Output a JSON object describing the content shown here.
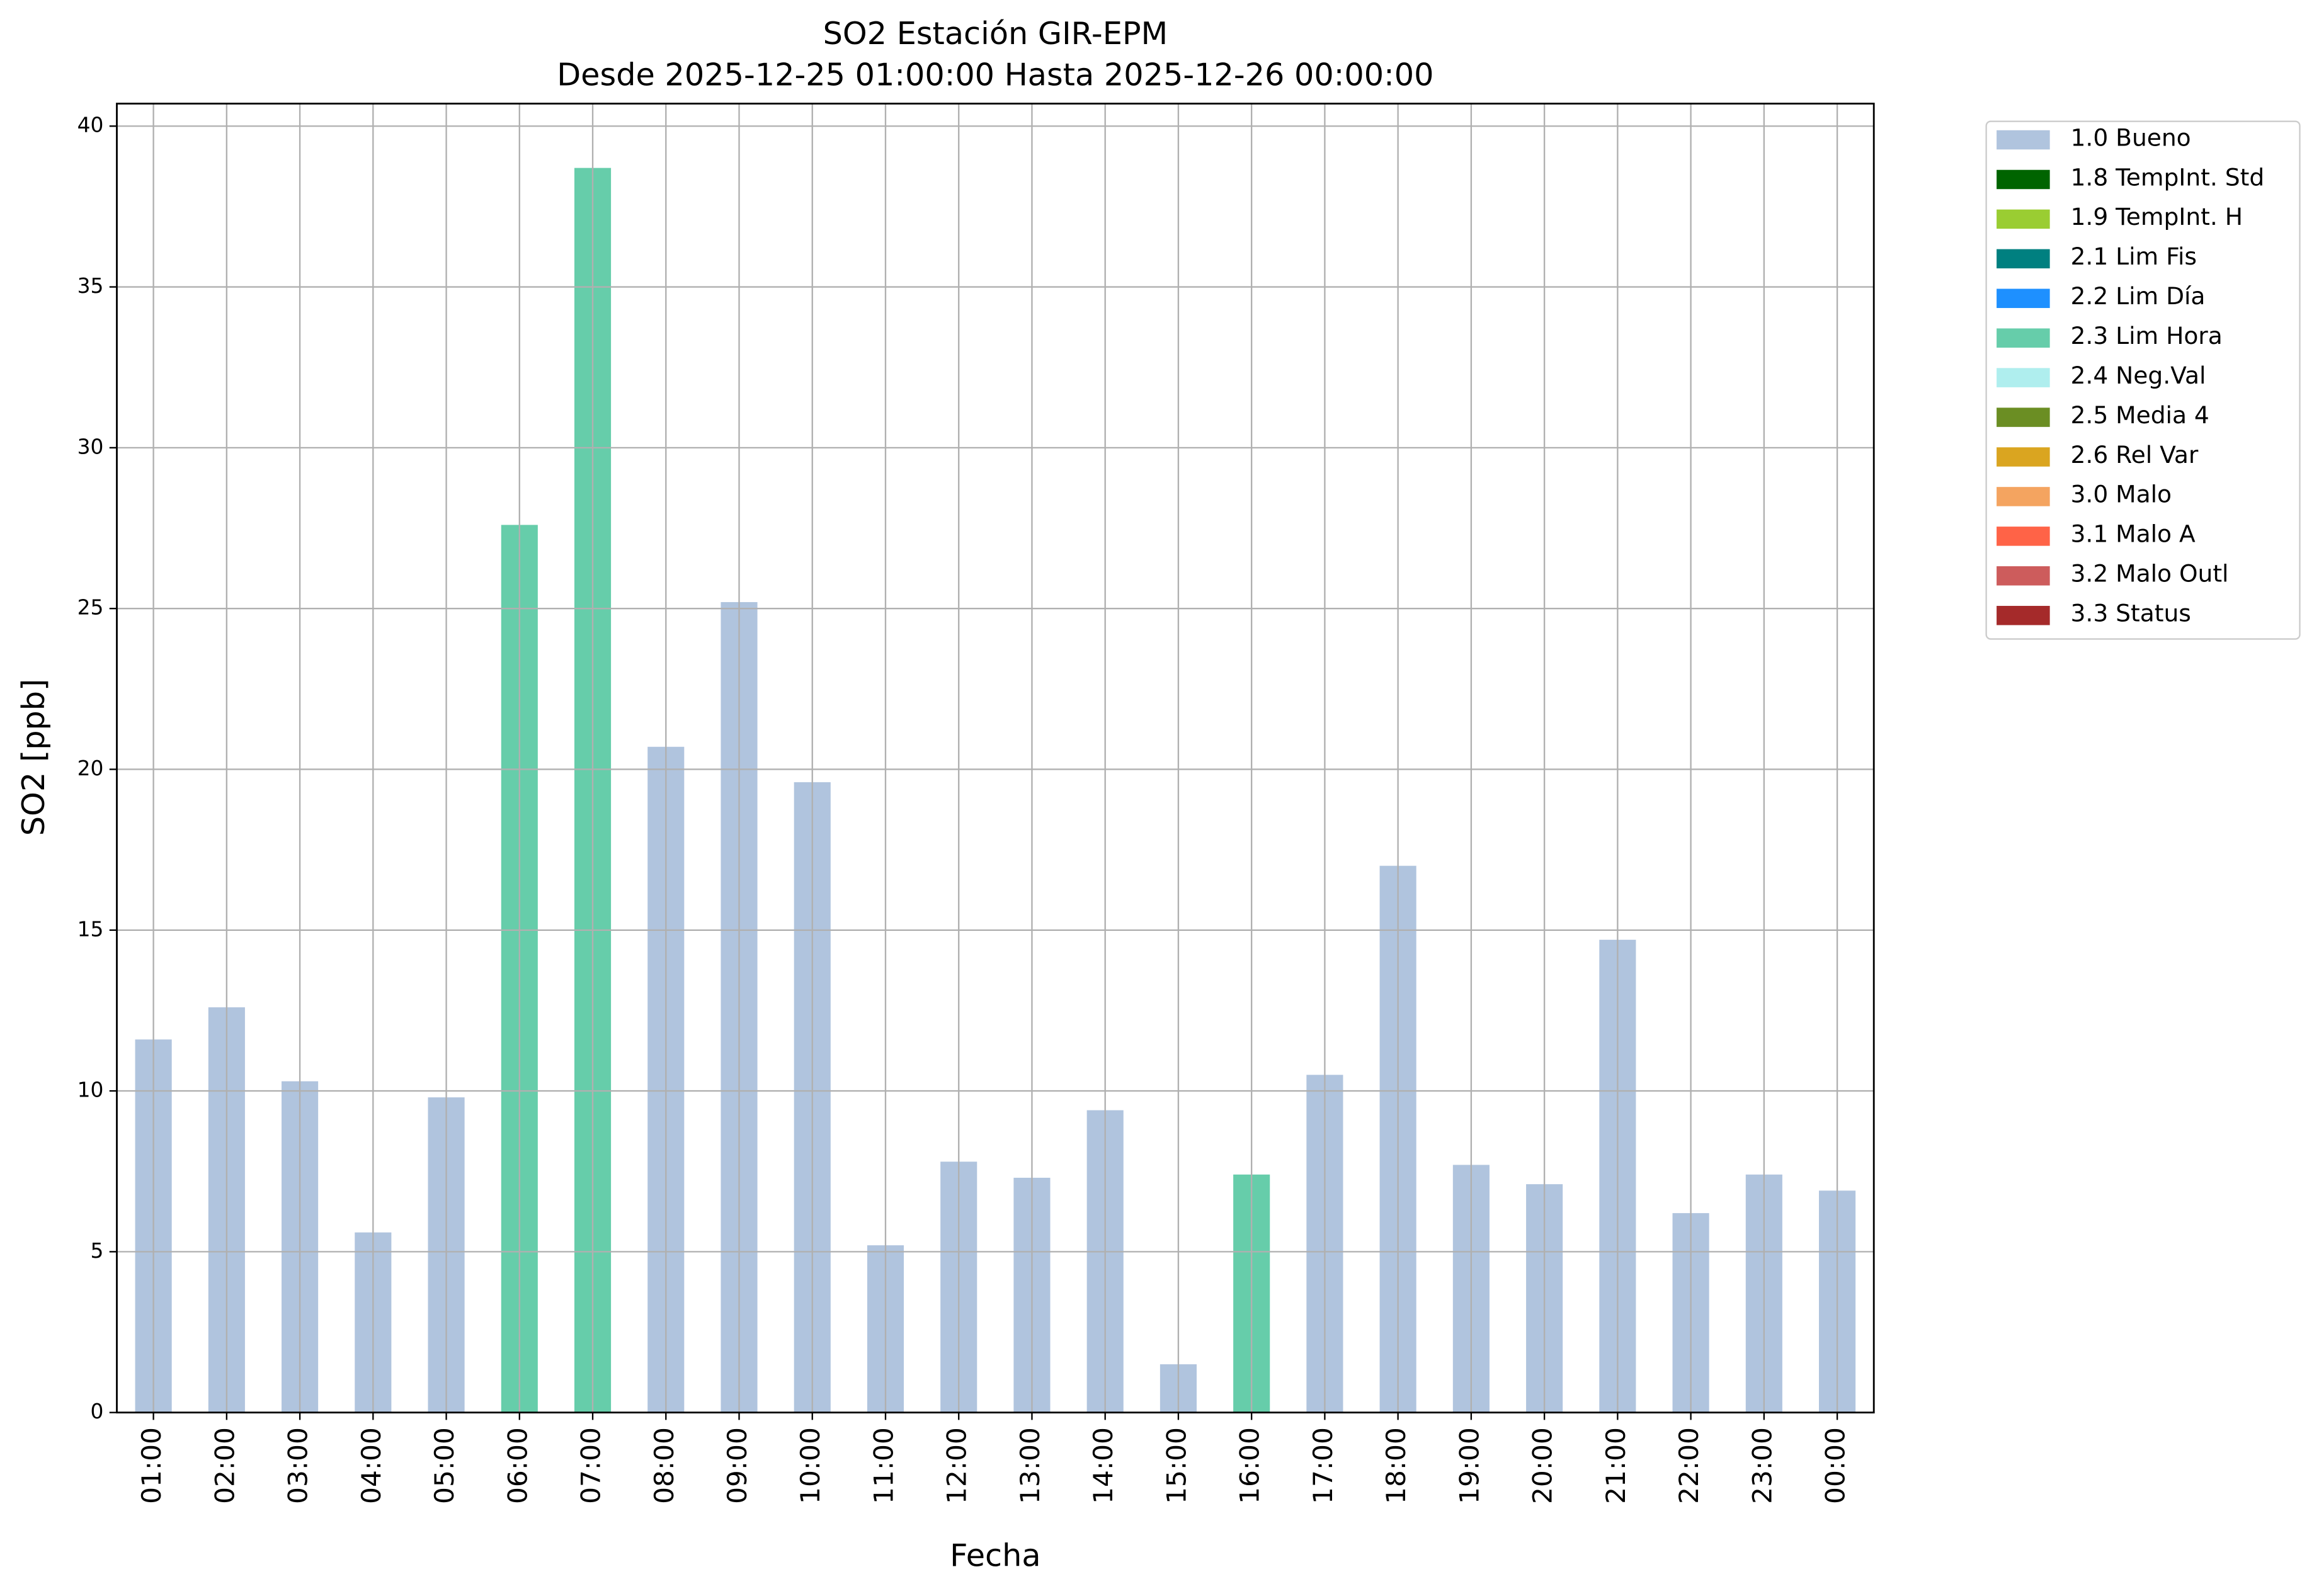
{
  "chart_data": {
    "type": "bar",
    "stacked": true,
    "title": "SO2 Estación GIR-EPM",
    "subtitle": "Desde 2025-12-25 01:00:00 Hasta 2025-12-26 00:00:00",
    "x_label": "Fecha",
    "y_label": "SO2 [ppb]",
    "categories": [
      "01:00",
      "02:00",
      "03:00",
      "04:00",
      "05:00",
      "06:00",
      "07:00",
      "08:00",
      "09:00",
      "10:00",
      "11:00",
      "12:00",
      "13:00",
      "14:00",
      "15:00",
      "16:00",
      "17:00",
      "18:00",
      "19:00",
      "20:00",
      "21:00",
      "22:00",
      "23:00",
      "00:00"
    ],
    "series": [
      {
        "name": "1.0 Bueno",
        "color": "#b0c4de",
        "values": [
          11.6,
          12.6,
          10.3,
          5.6,
          9.8,
          null,
          null,
          20.7,
          25.2,
          19.6,
          5.2,
          7.8,
          7.3,
          9.4,
          1.5,
          null,
          10.5,
          17.0,
          7.7,
          7.1,
          14.7,
          6.2,
          7.4,
          6.9
        ]
      },
      {
        "name": "1.8 TempInt. Std",
        "color": "#006400",
        "values": [
          null,
          null,
          null,
          null,
          null,
          null,
          null,
          null,
          null,
          null,
          null,
          null,
          null,
          null,
          null,
          null,
          null,
          null,
          null,
          null,
          null,
          null,
          null,
          null
        ]
      },
      {
        "name": "1.9 TempInt. H",
        "color": "#9acd32",
        "values": [
          null,
          null,
          null,
          null,
          null,
          null,
          null,
          null,
          null,
          null,
          null,
          null,
          null,
          null,
          null,
          null,
          null,
          null,
          null,
          null,
          null,
          null,
          null,
          null
        ]
      },
      {
        "name": "2.1 Lim Fis",
        "color": "#008080",
        "values": [
          null,
          null,
          null,
          null,
          null,
          null,
          null,
          null,
          null,
          null,
          null,
          null,
          null,
          null,
          null,
          null,
          null,
          null,
          null,
          null,
          null,
          null,
          null,
          null
        ]
      },
      {
        "name": "2.2 Lim Día",
        "color": "#1e90ff",
        "values": [
          null,
          null,
          null,
          null,
          null,
          null,
          null,
          null,
          null,
          null,
          null,
          null,
          null,
          null,
          null,
          null,
          null,
          null,
          null,
          null,
          null,
          null,
          null,
          null
        ]
      },
      {
        "name": "2.3 Lim Hora",
        "color": "#66cdaa",
        "values": [
          null,
          null,
          null,
          null,
          null,
          27.6,
          38.7,
          null,
          null,
          null,
          null,
          null,
          null,
          null,
          null,
          7.4,
          null,
          null,
          null,
          null,
          null,
          null,
          null,
          null
        ]
      },
      {
        "name": "2.4 Neg.Val",
        "color": "#afeeee",
        "values": [
          null,
          null,
          null,
          null,
          null,
          null,
          null,
          null,
          null,
          null,
          null,
          null,
          null,
          null,
          null,
          null,
          null,
          null,
          null,
          null,
          null,
          null,
          null,
          null
        ]
      },
      {
        "name": "2.5 Media 4",
        "color": "#6b8e23",
        "values": [
          null,
          null,
          null,
          null,
          null,
          null,
          null,
          null,
          null,
          null,
          null,
          null,
          null,
          null,
          null,
          null,
          null,
          null,
          null,
          null,
          null,
          null,
          null,
          null
        ]
      },
      {
        "name": "2.6 Rel Var",
        "color": "#daa520",
        "values": [
          null,
          null,
          null,
          null,
          null,
          null,
          null,
          null,
          null,
          null,
          null,
          null,
          null,
          null,
          null,
          null,
          null,
          null,
          null,
          null,
          null,
          null,
          null,
          null
        ]
      },
      {
        "name": "3.0 Malo",
        "color": "#f4a460",
        "values": [
          null,
          null,
          null,
          null,
          null,
          null,
          null,
          null,
          null,
          null,
          null,
          null,
          null,
          null,
          null,
          null,
          null,
          null,
          null,
          null,
          null,
          null,
          null,
          null
        ]
      },
      {
        "name": "3.1 Malo A",
        "color": "#ff6347",
        "values": [
          null,
          null,
          null,
          null,
          null,
          null,
          null,
          null,
          null,
          null,
          null,
          null,
          null,
          null,
          null,
          null,
          null,
          null,
          null,
          null,
          null,
          null,
          null,
          null
        ]
      },
      {
        "name": "3.2 Malo Outl",
        "color": "#cd5c5c",
        "values": [
          null,
          null,
          null,
          null,
          null,
          null,
          null,
          null,
          null,
          null,
          null,
          null,
          null,
          null,
          null,
          null,
          null,
          null,
          null,
          null,
          null,
          null,
          null,
          null
        ]
      },
      {
        "name": "3.3 Status",
        "color": "#a52a2a",
        "values": [
          null,
          null,
          null,
          null,
          null,
          null,
          null,
          null,
          null,
          null,
          null,
          null,
          null,
          null,
          null,
          null,
          null,
          null,
          null,
          null,
          null,
          null,
          null,
          null
        ]
      }
    ],
    "ylim": [
      0,
      40.7
    ],
    "yticks": [
      0,
      5,
      10,
      15,
      20,
      25,
      30,
      35,
      40
    ],
    "grid": true,
    "legend": "outside-right"
  }
}
